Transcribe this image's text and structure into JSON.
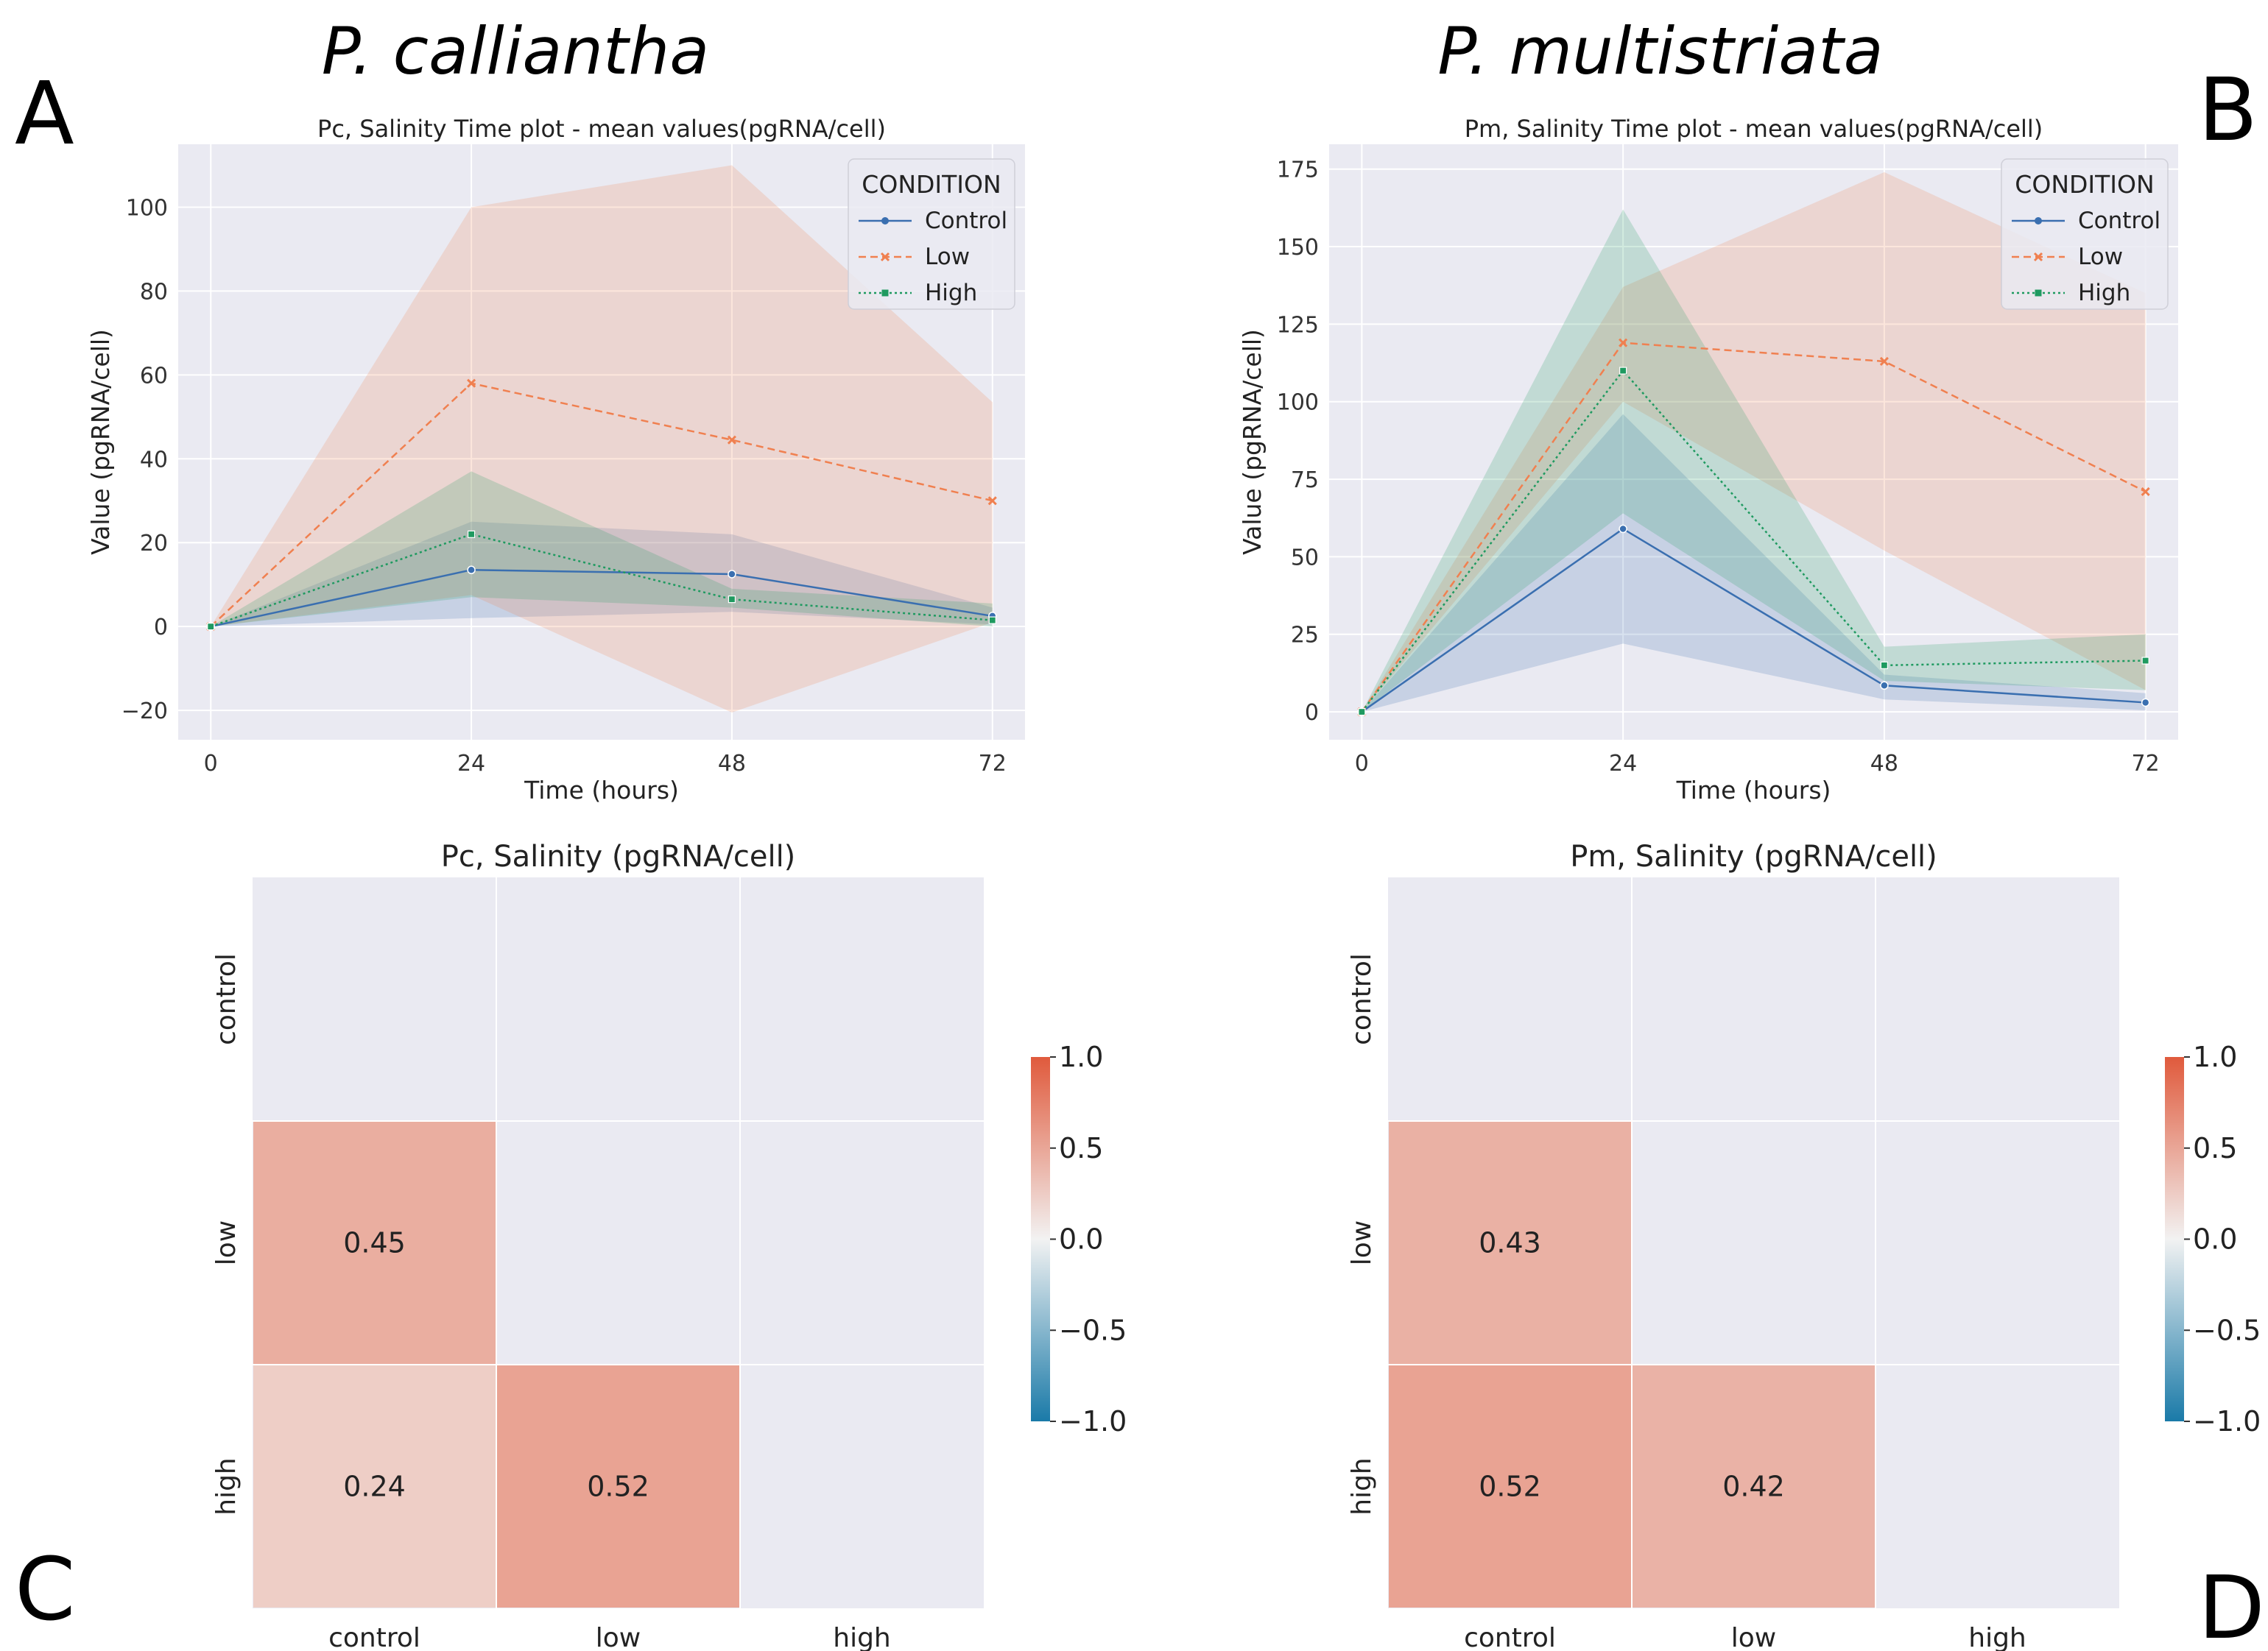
{
  "figure": {
    "species_left": "P. calliantha",
    "species_right": "P. multistriata",
    "panel_letters": [
      "A",
      "B",
      "C",
      "D"
    ]
  },
  "colors": {
    "control": "#3a6fb0",
    "low": "#f08050",
    "high": "#1f9a60",
    "plot_bg": "#eaeaf2",
    "grid": "#ffffff",
    "heat_pos": "#e05a3c",
    "heat_neg": "#1a7aa8"
  },
  "chart_data": [
    {
      "type": "line",
      "title": "Pc, Salinity Time plot - mean values(pgRNA/cell)",
      "xlabel": "Time (hours)",
      "ylabel": "Value (pgRNA/cell)",
      "x": [
        0,
        24,
        48,
        72
      ],
      "xticks": [
        "0",
        "24",
        "48",
        "72"
      ],
      "yticks": [
        -20,
        0,
        20,
        40,
        60,
        80,
        100
      ],
      "xlim": [
        -3,
        75
      ],
      "ylim": [
        -27,
        115
      ],
      "legend_title": "CONDITION",
      "legend_position": "top-right",
      "series": [
        {
          "name": "Control",
          "key": "control",
          "values": [
            0,
            13.5,
            12.5,
            2.5
          ],
          "lower": [
            0,
            2,
            3.5,
            0.5
          ],
          "upper": [
            0,
            25,
            22,
            4.5
          ]
        },
        {
          "name": "Low",
          "key": "low",
          "values": [
            0,
            58,
            44.5,
            30
          ],
          "lower": [
            0,
            7.5,
            -20.5,
            1
          ],
          "upper": [
            0,
            100,
            110,
            53.5
          ]
        },
        {
          "name": "High",
          "key": "high",
          "values": [
            0,
            22,
            6.5,
            1.5
          ],
          "lower": [
            0,
            7,
            4.5,
            0
          ],
          "upper": [
            0,
            37,
            9,
            5.5
          ]
        }
      ]
    },
    {
      "type": "line",
      "title": "Pm, Salinity Time plot - mean values(pgRNA/cell)",
      "xlabel": "Time (hours)",
      "ylabel": "Value (pgRNA/cell)",
      "x": [
        0,
        24,
        48,
        72
      ],
      "xticks": [
        "0",
        "24",
        "48",
        "72"
      ],
      "yticks": [
        0,
        25,
        50,
        75,
        100,
        125,
        150,
        175
      ],
      "xlim": [
        -3,
        75
      ],
      "ylim": [
        -9,
        183
      ],
      "legend_title": "CONDITION",
      "legend_position": "top-right",
      "series": [
        {
          "name": "Control",
          "key": "control",
          "values": [
            0,
            59,
            8.5,
            3
          ],
          "lower": [
            0,
            22,
            4,
            0.5
          ],
          "upper": [
            0,
            96,
            12,
            6
          ]
        },
        {
          "name": "Low",
          "key": "low",
          "values": [
            0,
            119,
            113,
            71
          ],
          "lower": [
            0,
            100,
            52,
            7
          ],
          "upper": [
            0,
            137,
            174,
            135
          ]
        },
        {
          "name": "High",
          "key": "high",
          "values": [
            0,
            110,
            15,
            16.5
          ],
          "lower": [
            0,
            64,
            10,
            7
          ],
          "upper": [
            0,
            162,
            21,
            25
          ]
        }
      ]
    },
    {
      "type": "heatmap",
      "title": "Pc, Salinity (pgRNA/cell)",
      "labels": [
        "control",
        "low",
        "high"
      ],
      "vmin": -1.0,
      "vmax": 1.0,
      "colorbar_ticks": [
        "1.0",
        "0.5",
        "0.0",
        "−0.5",
        "−1.0"
      ],
      "cells": [
        {
          "row": 1,
          "col": 0,
          "value": 0.45,
          "label": "0.45"
        },
        {
          "row": 2,
          "col": 0,
          "value": 0.24,
          "label": "0.24"
        },
        {
          "row": 2,
          "col": 1,
          "value": 0.52,
          "label": "0.52"
        }
      ]
    },
    {
      "type": "heatmap",
      "title": "Pm, Salinity (pgRNA/cell)",
      "labels": [
        "control",
        "low",
        "high"
      ],
      "vmin": -1.0,
      "vmax": 1.0,
      "colorbar_ticks": [
        "1.0",
        "0.5",
        "0.0",
        "−0.5",
        "−1.0"
      ],
      "cells": [
        {
          "row": 1,
          "col": 0,
          "value": 0.43,
          "label": "0.43"
        },
        {
          "row": 2,
          "col": 0,
          "value": 0.52,
          "label": "0.52"
        },
        {
          "row": 2,
          "col": 1,
          "value": 0.42,
          "label": "0.42"
        }
      ]
    }
  ]
}
